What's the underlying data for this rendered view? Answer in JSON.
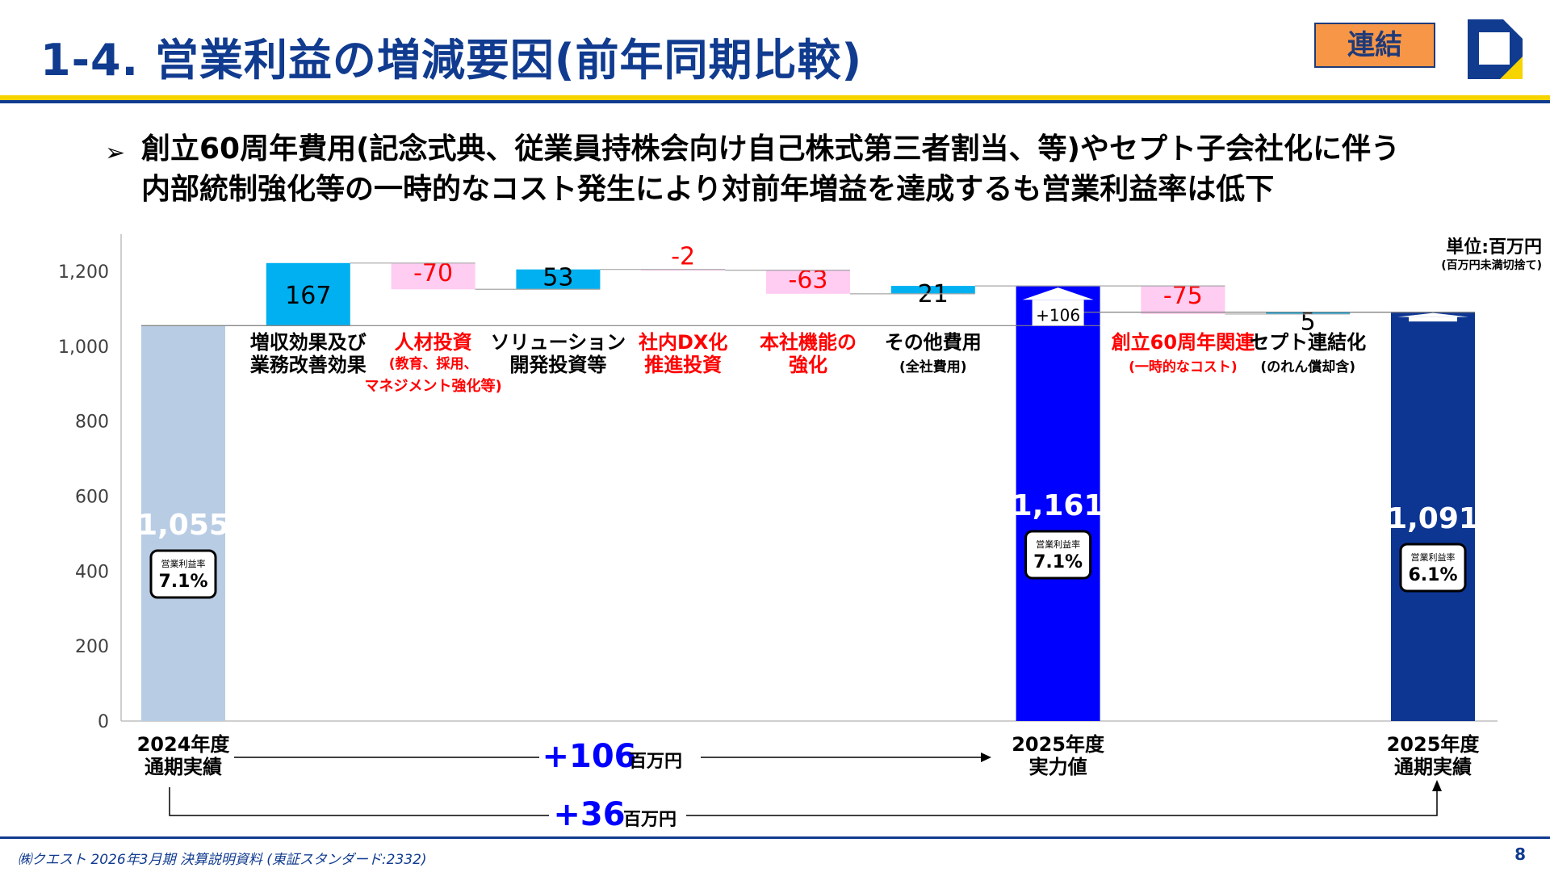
{
  "header": {
    "title": "1-4. 営業利益の増減要因(前年同期比較)",
    "badge": "連結"
  },
  "headline": {
    "line1": "創立60周年費用(記念式典、従業員持株会向け自己株式第三者割当、等)やセプト子会社化に伴う",
    "line2": "内部統制強化等の一時的なコスト発生により対前年増益を達成するも営業利益率は低下"
  },
  "unit": {
    "line1": "単位:百万円",
    "line2": "(百万円未満切捨て)"
  },
  "footer": {
    "text": "㈱クエスト 2026年3月期 決算説明資料 (東証スタンダード:2332)",
    "page": "8"
  },
  "summary": {
    "diff1_value": "+106",
    "diff1_unit": "百万円",
    "diff2_value": "+36",
    "diff2_unit": "百万円"
  },
  "colors": {
    "title": "#103b8f",
    "badge_fill": "#f79646",
    "base_2024": "#b8cce4",
    "mid_2025": "#0000ff",
    "final_2025": "#0d3592",
    "increase": "#00b0f0",
    "decrease": "#ffccf2",
    "decrease_text": "#ff0000",
    "total_text": "#0000ff"
  },
  "chart_data": {
    "type": "bar",
    "subtype": "waterfall",
    "ylim": [
      0,
      1200
    ],
    "yticks": [
      "0",
      "200",
      "400",
      "600",
      "800",
      "1,000",
      "1,200"
    ],
    "grid": false,
    "unit": "百万円",
    "categories": [
      {
        "label": [
          "2024年度",
          "通期実績"
        ],
        "kind": "total",
        "value": 1055,
        "value_label": "1,055",
        "margin_label": "営業利益率",
        "margin_value": "7.1%",
        "color": "#b8cce4"
      },
      {
        "label": [
          "増収効果及び",
          "業務改善効果"
        ],
        "kind": "increase",
        "value": 167,
        "value_label": "167",
        "label_red": false
      },
      {
        "label": [
          "人材投資",
          "(教育、採用、",
          "マネジメント強化等)"
        ],
        "kind": "decrease",
        "value": -70,
        "value_label": "-70",
        "label_red": true
      },
      {
        "label": [
          "ソリューション",
          "開発投資等"
        ],
        "kind": "increase",
        "value": 53,
        "value_label": "53",
        "label_red": false
      },
      {
        "label": [
          "社内DX化",
          "推進投資"
        ],
        "kind": "decrease",
        "value": -2,
        "value_label": "-2",
        "label_red": true
      },
      {
        "label": [
          "本社機能の",
          "強化"
        ],
        "kind": "decrease",
        "value": -63,
        "value_label": "-63",
        "label_red": true
      },
      {
        "label": [
          "その他費用",
          "(全社費用)"
        ],
        "kind": "increase",
        "value": 21,
        "value_label": "21",
        "label_red": false
      },
      {
        "label": [
          "2025年度",
          "実力値"
        ],
        "kind": "total",
        "value": 1161,
        "value_label": "1,161",
        "delta_label": "+106",
        "margin_label": "営業利益率",
        "margin_value": "7.1%",
        "color": "#0000ff"
      },
      {
        "label": [
          "創立60周年関連",
          "(一時的なコスト)"
        ],
        "kind": "decrease",
        "value": -75,
        "value_label": "-75",
        "label_red": true
      },
      {
        "label": [
          "セプト連結化",
          "(のれん償却含)"
        ],
        "kind": "increase",
        "value": 5,
        "value_label": "5",
        "label_red": false
      },
      {
        "label": [
          "2025年度",
          "通期実績"
        ],
        "kind": "total",
        "value": 1091,
        "value_label": "1,091",
        "margin_label": "営業利益率",
        "margin_value": "6.1%",
        "color": "#0d3592"
      }
    ]
  }
}
